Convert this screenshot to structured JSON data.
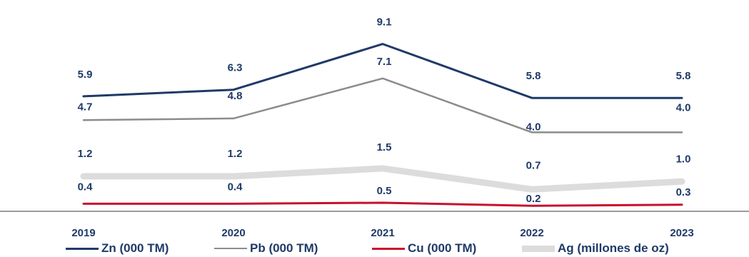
{
  "chart_data": {
    "type": "line",
    "title": "",
    "xlabel": "",
    "ylabel": "",
    "categories": [
      "2019",
      "2020",
      "2021",
      "2022",
      "2023"
    ],
    "grid": false,
    "legend_position": "bottom",
    "series": [
      {
        "name": "Zn (000 TM)",
        "values": [
          5.9,
          6.3,
          9.1,
          5.8,
          5.8
        ],
        "color": "#1f3a68",
        "labels": [
          "5.9",
          "6.3",
          "9.1",
          "5.8",
          "5.8"
        ]
      },
      {
        "name": "Pb (000 TM)",
        "values": [
          4.7,
          4.8,
          7.1,
          4.0,
          4.0
        ],
        "color": "#8c8c8c",
        "labels": [
          "4.7",
          "4.8",
          "7.1",
          "4.0",
          "4.0"
        ]
      },
      {
        "name": "Cu (000 TM)",
        "values": [
          0.4,
          0.4,
          0.5,
          0.2,
          0.3
        ],
        "color": "#c8102e",
        "labels": [
          "0.4",
          "0.4",
          "0.5",
          "0.2",
          "0.3"
        ]
      },
      {
        "name": "Ag (millones de oz)",
        "values": [
          1.2,
          1.2,
          1.5,
          0.7,
          1.0
        ],
        "color": "#dcdcdc",
        "labels": [
          "1.2",
          "1.2",
          "1.5",
          "0.7",
          "1.0"
        ]
      }
    ]
  }
}
